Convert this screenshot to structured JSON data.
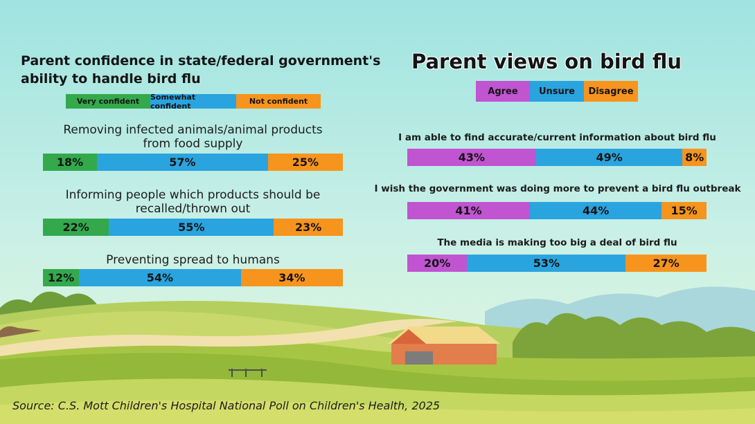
{
  "colors": {
    "very_confident": "#33a94c",
    "somewhat_confident": "#2aa4df",
    "not_confident": "#f7941d",
    "agree": "#c054d1",
    "unsure": "#2aa4df",
    "disagree": "#f7941d"
  },
  "source": "Source: C.S. Mott Children's Hospital National Poll on Children's Health, 2025",
  "chart_data": [
    {
      "type": "bar",
      "orientation": "horizontal",
      "stacked": true,
      "title_line1": "Parent confidence in state/federal government's",
      "title_line2": "ability to handle bird flu",
      "legend": [
        "Very confident",
        "Somewhat confident",
        "Not confident"
      ],
      "legend_placement": "top",
      "categories": [
        {
          "line1": "Removing infected animals/animal products",
          "line2": "from food supply"
        },
        {
          "line1": "Informing people which products should be",
          "line2": "recalled/thrown out"
        },
        {
          "line1": "Preventing spread to humans",
          "line2": ""
        }
      ],
      "series": [
        {
          "name": "Very confident",
          "values": [
            18,
            22,
            12
          ]
        },
        {
          "name": "Somewhat confident",
          "values": [
            57,
            55,
            54
          ]
        },
        {
          "name": "Not confident",
          "values": [
            25,
            23,
            34
          ]
        }
      ],
      "unit": "%"
    },
    {
      "type": "bar",
      "orientation": "horizontal",
      "stacked": true,
      "title": "Parent views on bird flu",
      "legend": [
        "Agree",
        "Unsure",
        "Disagree"
      ],
      "legend_placement": "top",
      "categories": [
        "I am able to find accurate/current information about bird flu",
        "I wish the government was doing more to prevent a bird flu outbreak",
        "The media is making too big a deal of bird flu"
      ],
      "series": [
        {
          "name": "Agree",
          "values": [
            43,
            41,
            20
          ]
        },
        {
          "name": "Unsure",
          "values": [
            49,
            44,
            53
          ]
        },
        {
          "name": "Disagree",
          "values": [
            8,
            15,
            27
          ]
        }
      ],
      "unit": "%"
    }
  ]
}
